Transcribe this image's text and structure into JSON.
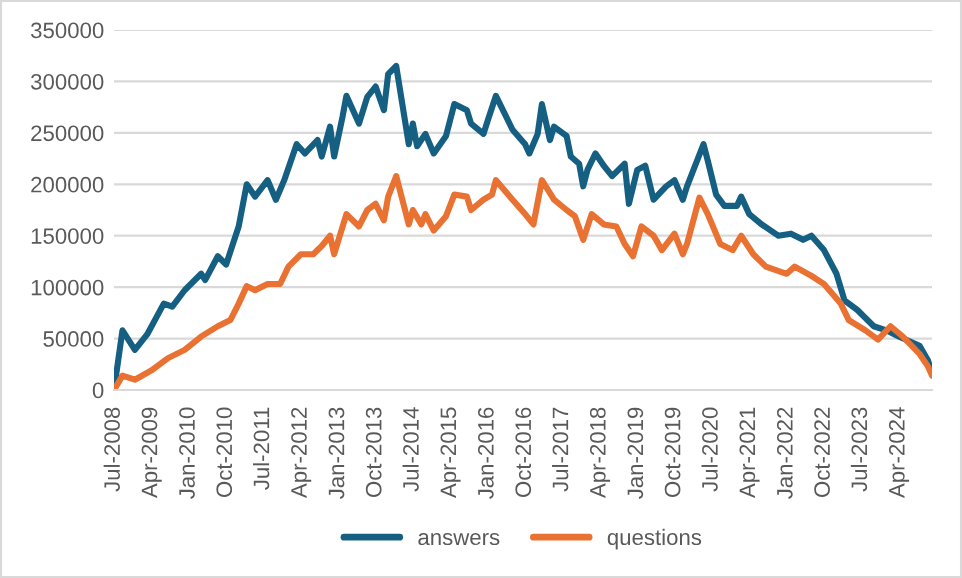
{
  "chart_data": {
    "type": "line",
    "xlim": [
      "2008-07",
      "2024-12"
    ],
    "ylim": [
      0,
      350000
    ],
    "yticks": [
      0,
      50000,
      100000,
      150000,
      200000,
      250000,
      300000,
      350000
    ],
    "xticks": [
      {
        "value": "2008-07",
        "label": "Jul-2008"
      },
      {
        "value": "2009-04",
        "label": "Apr-2009"
      },
      {
        "value": "2010-01",
        "label": "Jan-2010"
      },
      {
        "value": "2010-10",
        "label": "Oct-2010"
      },
      {
        "value": "2011-07",
        "label": "Jul-2011"
      },
      {
        "value": "2012-04",
        "label": "Apr-2012"
      },
      {
        "value": "2013-01",
        "label": "Jan-2013"
      },
      {
        "value": "2013-10",
        "label": "Oct-2013"
      },
      {
        "value": "2014-07",
        "label": "Jul-2014"
      },
      {
        "value": "2015-04",
        "label": "Apr-2015"
      },
      {
        "value": "2016-01",
        "label": "Jan-2016"
      },
      {
        "value": "2016-10",
        "label": "Oct-2016"
      },
      {
        "value": "2017-07",
        "label": "Jul-2017"
      },
      {
        "value": "2018-04",
        "label": "Apr-2018"
      },
      {
        "value": "2019-01",
        "label": "Jan-2019"
      },
      {
        "value": "2019-10",
        "label": "Oct-2019"
      },
      {
        "value": "2020-07",
        "label": "Jul-2020"
      },
      {
        "value": "2021-04",
        "label": "Apr-2021"
      },
      {
        "value": "2022-01",
        "label": "Jan-2022"
      },
      {
        "value": "2022-10",
        "label": "Oct-2022"
      },
      {
        "value": "2023-07",
        "label": "Jul-2023"
      },
      {
        "value": "2024-04",
        "label": "Apr-2024"
      }
    ],
    "grid": "y",
    "legend": "bottom",
    "series": [
      {
        "name": "answers",
        "color": "#156082",
        "x": [
          "2008-07",
          "2008-09",
          "2008-12",
          "2009-03",
          "2009-07",
          "2009-09",
          "2009-12",
          "2010-04",
          "2010-05",
          "2010-08",
          "2010-10",
          "2011-01",
          "2011-03",
          "2011-05",
          "2011-08",
          "2011-10",
          "2011-12",
          "2012-03",
          "2012-05",
          "2012-08",
          "2012-09",
          "2012-11",
          "2012-12",
          "2013-02",
          "2013-03",
          "2013-06",
          "2013-08",
          "2013-10",
          "2013-12",
          "2014-01",
          "2014-03",
          "2014-06",
          "2014-07",
          "2014-08",
          "2014-10",
          "2014-12",
          "2015-03",
          "2015-05",
          "2015-08",
          "2015-09",
          "2015-12",
          "2016-01",
          "2016-03",
          "2016-07",
          "2016-10",
          "2016-11",
          "2017-01",
          "2017-02",
          "2017-04",
          "2017-05",
          "2017-08",
          "2017-09",
          "2017-11",
          "2017-12",
          "2018-01",
          "2018-03",
          "2018-05",
          "2018-07",
          "2018-10",
          "2018-11",
          "2019-01",
          "2019-03",
          "2019-05",
          "2019-08",
          "2019-10",
          "2019-12",
          "2020-01",
          "2020-05",
          "2020-06",
          "2020-08",
          "2020-10",
          "2021-01",
          "2021-02",
          "2021-04",
          "2021-07",
          "2021-11",
          "2022-02",
          "2022-05",
          "2022-07",
          "2022-10",
          "2023-01",
          "2023-03",
          "2023-06",
          "2023-10",
          "2024-01",
          "2024-04",
          "2024-09",
          "2024-11",
          "2024-12"
        ],
        "values": [
          0,
          58000,
          39000,
          54000,
          84000,
          81000,
          97000,
          113000,
          107000,
          130000,
          122000,
          159000,
          200000,
          188000,
          204000,
          185000,
          204000,
          239000,
          230000,
          243000,
          227000,
          256000,
          227000,
          266000,
          286000,
          259000,
          285000,
          295000,
          272000,
          307000,
          315000,
          239000,
          259000,
          237000,
          249000,
          230000,
          247000,
          278000,
          272000,
          259000,
          249000,
          262000,
          286000,
          253000,
          239000,
          230000,
          249000,
          278000,
          243000,
          256000,
          247000,
          227000,
          220000,
          198000,
          214000,
          230000,
          218000,
          208000,
          220000,
          181000,
          214000,
          218000,
          185000,
          198000,
          204000,
          185000,
          198000,
          239000,
          223000,
          190000,
          179000,
          179000,
          188000,
          171000,
          161000,
          150000,
          152000,
          146000,
          150000,
          136000,
          113000,
          87000,
          78000,
          62000,
          58000,
          52000,
          43000,
          29000,
          16000
        ]
      },
      {
        "name": "questions",
        "color": "#e97132",
        "x": [
          "2008-07",
          "2008-09",
          "2008-12",
          "2009-04",
          "2009-08",
          "2009-12",
          "2010-04",
          "2010-08",
          "2010-11",
          "2011-01",
          "2011-03",
          "2011-05",
          "2011-08",
          "2011-11",
          "2012-01",
          "2012-04",
          "2012-07",
          "2012-09",
          "2012-11",
          "2012-12",
          "2013-03",
          "2013-06",
          "2013-08",
          "2013-10",
          "2013-12",
          "2014-01",
          "2014-03",
          "2014-06",
          "2014-07",
          "2014-09",
          "2014-10",
          "2014-12",
          "2015-03",
          "2015-05",
          "2015-08",
          "2015-09",
          "2015-12",
          "2016-02",
          "2016-03",
          "2016-07",
          "2016-10",
          "2016-12",
          "2017-02",
          "2017-05",
          "2017-08",
          "2017-10",
          "2017-12",
          "2018-02",
          "2018-05",
          "2018-08",
          "2018-10",
          "2018-12",
          "2019-02",
          "2019-05",
          "2019-07",
          "2019-10",
          "2019-12",
          "2020-01",
          "2020-04",
          "2020-06",
          "2020-09",
          "2020-12",
          "2021-02",
          "2021-05",
          "2021-08",
          "2022-01",
          "2022-03",
          "2022-07",
          "2022-10",
          "2023-02",
          "2023-04",
          "2023-08",
          "2023-11",
          "2024-02",
          "2024-05",
          "2024-09",
          "2024-11",
          "2024-12"
        ],
        "values": [
          0,
          14000,
          10000,
          19000,
          31000,
          39000,
          52000,
          62000,
          68000,
          84000,
          101000,
          97000,
          103000,
          103000,
          120000,
          132000,
          132000,
          140000,
          150000,
          132000,
          171000,
          159000,
          175000,
          181000,
          165000,
          188000,
          208000,
          161000,
          175000,
          161000,
          171000,
          155000,
          169000,
          190000,
          188000,
          175000,
          185000,
          190000,
          204000,
          185000,
          171000,
          161000,
          204000,
          185000,
          175000,
          169000,
          146000,
          171000,
          161000,
          159000,
          142000,
          130000,
          159000,
          150000,
          136000,
          152000,
          132000,
          142000,
          187000,
          171000,
          142000,
          136000,
          150000,
          132000,
          120000,
          113000,
          120000,
          111000,
          103000,
          84000,
          68000,
          58000,
          49000,
          62000,
          52000,
          35000,
          23000,
          14000
        ]
      }
    ]
  }
}
